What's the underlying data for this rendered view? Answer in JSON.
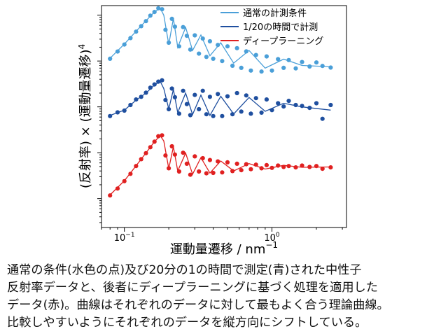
{
  "chart_data": {
    "type": "scatter",
    "xscale": "log",
    "yscale": "log",
    "xlim": [
      0.07,
      3.2
    ],
    "xlabel": "運動量遷移 / nm",
    "xlabel_sup": "−1",
    "ylabel": "(反射率) × (運動量遷移)",
    "ylabel_sup": "4",
    "xtick_labels": [
      {
        "value": 0.1,
        "base": "10",
        "exp": "−1"
      },
      {
        "value": 1,
        "base": "10",
        "exp": "0"
      }
    ],
    "legend_position": "top-right",
    "grid": false,
    "series": [
      {
        "name": "通常の計測条件",
        "color": "#4a9fd8",
        "points_x": [
          0.08,
          0.09,
          0.1,
          0.11,
          0.12,
          0.13,
          0.14,
          0.15,
          0.16,
          0.17,
          0.18,
          0.19,
          0.2,
          0.21,
          0.22,
          0.235,
          0.25,
          0.265,
          0.28,
          0.3,
          0.32,
          0.34,
          0.36,
          0.38,
          0.4,
          0.43,
          0.46,
          0.5,
          0.54,
          0.58,
          0.62,
          0.67,
          0.72,
          0.78,
          0.85,
          0.92,
          1.0,
          1.1,
          1.2,
          1.3,
          1.45,
          1.6,
          1.8,
          2.0,
          2.2,
          2.5
        ],
        "points_y": [
          0.0112,
          0.0161,
          0.0229,
          0.0316,
          0.0437,
          0.0575,
          0.0741,
          0.0977,
          0.1175,
          0.1413,
          0.1349,
          0.0479,
          0.0251,
          0.0832,
          0.0562,
          0.0209,
          0.055,
          0.0355,
          0.0178,
          0.0363,
          0.0145,
          0.0309,
          0.0123,
          0.0269,
          0.0112,
          0.0224,
          0.01,
          0.0209,
          0.0079,
          0.0191,
          0.0071,
          0.0162,
          0.0062,
          0.0135,
          0.0059,
          0.0126,
          0.0062,
          0.011,
          0.0071,
          0.0105,
          0.0069,
          0.0095,
          0.0076,
          0.0093,
          0.0078,
          0.0072
        ],
        "fit_x": [
          0.08,
          0.1,
          0.12,
          0.14,
          0.16,
          0.175,
          0.185,
          0.2,
          0.215,
          0.23,
          0.26,
          0.29,
          0.33,
          0.38,
          0.45,
          0.55,
          0.7,
          0.9,
          1.2,
          1.6,
          2.5
        ],
        "fit_y": [
          0.0115,
          0.0235,
          0.0445,
          0.0755,
          0.118,
          0.142,
          0.1,
          0.023,
          0.085,
          0.02,
          0.054,
          0.017,
          0.037,
          0.013,
          0.025,
          0.009,
          0.017,
          0.007,
          0.011,
          0.008,
          0.0075
        ]
      },
      {
        "name": "1/20の時間で計測",
        "color": "#1f4f9f",
        "points_x": [
          0.08,
          0.09,
          0.1,
          0.11,
          0.12,
          0.13,
          0.14,
          0.15,
          0.16,
          0.17,
          0.18,
          0.19,
          0.2,
          0.21,
          0.22,
          0.235,
          0.25,
          0.265,
          0.28,
          0.3,
          0.32,
          0.34,
          0.36,
          0.38,
          0.4,
          0.43,
          0.46,
          0.5,
          0.54,
          0.58,
          0.62,
          0.67,
          0.72,
          0.78,
          0.85,
          0.92,
          1.0,
          1.1,
          1.2,
          1.3,
          1.45,
          1.6,
          1.8,
          2.0,
          2.2,
          2.5
        ],
        "points_y": [
          0.00063,
          0.00076,
          0.00083,
          0.0011,
          0.00145,
          0.00166,
          0.00204,
          0.00263,
          0.00309,
          0.00355,
          0.0038,
          0.00141,
          0.00089,
          0.00251,
          0.00162,
          0.00071,
          0.00224,
          0.00115,
          0.00066,
          0.00182,
          0.00089,
          0.00224,
          0.00069,
          0.00166,
          0.00063,
          0.00191,
          0.00063,
          0.0017,
          0.00069,
          0.002,
          0.00079,
          0.00178,
          0.00071,
          0.00155,
          0.00075,
          0.00145,
          0.00085,
          0.0012,
          0.00102,
          0.00135,
          0.0011,
          0.00105,
          0.00095,
          0.0012,
          0.00055,
          0.0011
        ],
        "fit_x": [
          0.08,
          0.1,
          0.12,
          0.14,
          0.16,
          0.175,
          0.185,
          0.2,
          0.215,
          0.23,
          0.26,
          0.29,
          0.33,
          0.38,
          0.45,
          0.55,
          0.7,
          0.9,
          1.2,
          1.6,
          2.5
        ],
        "fit_y": [
          0.00065,
          0.00085,
          0.0014,
          0.002,
          0.003,
          0.0036,
          0.0025,
          0.0009,
          0.0024,
          0.00075,
          0.002,
          0.00068,
          0.0018,
          0.00065,
          0.0017,
          0.0007,
          0.0016,
          0.0008,
          0.0012,
          0.001,
          0.00085
        ]
      },
      {
        "name": "ディープラーニング",
        "color": "#e02020",
        "points_x": [
          0.08,
          0.09,
          0.1,
          0.11,
          0.12,
          0.13,
          0.14,
          0.15,
          0.16,
          0.17,
          0.18,
          0.19,
          0.2,
          0.21,
          0.22,
          0.235,
          0.25,
          0.265,
          0.28,
          0.3,
          0.32,
          0.34,
          0.36,
          0.38,
          0.4,
          0.43,
          0.46,
          0.5,
          0.54,
          0.58,
          0.62,
          0.67,
          0.72,
          0.78,
          0.85,
          0.92,
          1.0,
          1.1,
          1.2,
          1.3,
          1.45,
          1.6,
          1.8,
          2.0,
          2.2,
          2.5
        ],
        "points_y": [
          1.17e-05,
          1.66e-05,
          2.4e-05,
          3.47e-05,
          5.13e-05,
          7.24e-05,
          9.77e-05,
          0.0001318,
          0.0001738,
          0.0002291,
          0.0002399,
          8.71e-05,
          4.57e-05,
          0.000138,
          9.12e-05,
          3.89e-05,
          0.0001,
          5.75e-05,
          3.31e-05,
          8.32e-05,
          3.89e-05,
          7.59e-05,
          3.55e-05,
          6.92e-05,
          3.63e-05,
          6.46e-05,
          3.72e-05,
          6.17e-05,
          3.98e-05,
          5.75e-05,
          4.17e-05,
          5.62e-05,
          4.37e-05,
          5.5e-05,
          4.57e-05,
          5.37e-05,
          4.68e-05,
          5.25e-05,
          4.9e-05,
          5.13e-05,
          4.79e-05,
          5.25e-05,
          4.9e-05,
          5.13e-05,
          4.47e-05,
          4.79e-05
        ],
        "fit_x": [
          0.08,
          0.1,
          0.12,
          0.14,
          0.16,
          0.175,
          0.185,
          0.2,
          0.215,
          0.23,
          0.26,
          0.29,
          0.33,
          0.38,
          0.45,
          0.55,
          0.7,
          0.9,
          1.2,
          1.6,
          2.5
        ],
        "fit_y": [
          1.2e-05,
          2.45e-05,
          5.2e-05,
          9.9e-05,
          0.000175,
          0.000235,
          0.00018,
          4.5e-05,
          0.000135,
          4e-05,
          9.8e-05,
          3.4e-05,
          7.8e-05,
          3.6e-05,
          6.6e-05,
          4e-05,
          5.8e-05,
          4.4e-05,
          5.3e-05,
          4.8e-05,
          4.9e-05
        ]
      }
    ]
  },
  "caption_lines": [
    "通常の条件(水色の点)及び20分の1の時間で測定(青)された中性子",
    "反射率データと、後者にディープラーニングに基づく処理を適用した",
    "データ(赤)。曲線はそれぞれのデータに対して最もよく合う理論曲線。",
    "比較しやすいようにそれぞれのデータを縦方向にシフトしている。"
  ]
}
